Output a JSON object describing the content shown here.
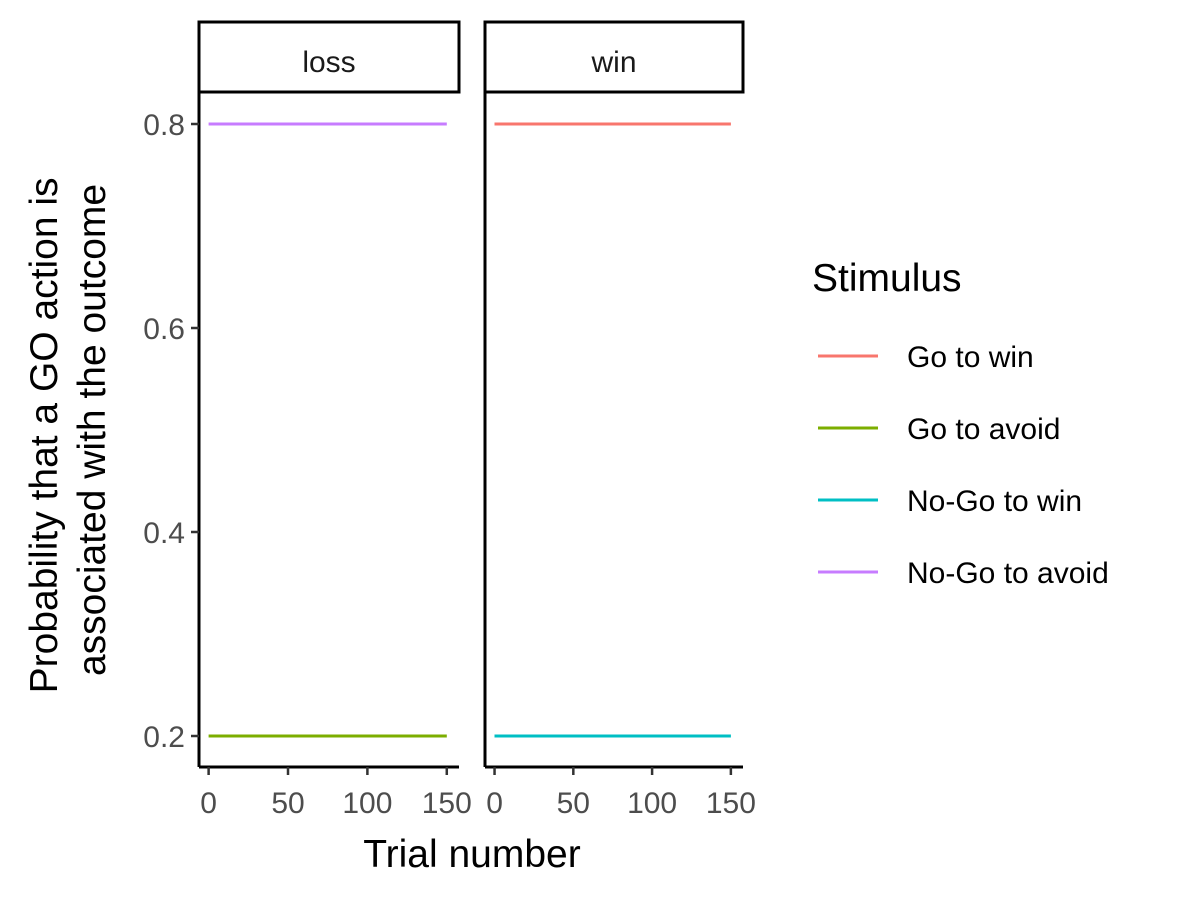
{
  "chart_data": {
    "type": "line",
    "facets": [
      "loss",
      "win"
    ],
    "x_label": "Trial number",
    "y_label_lines": [
      "Probability that a GO action is",
      "associated with the outcome"
    ],
    "x_ticks": [
      0,
      50,
      100,
      150
    ],
    "y_ticks": [
      0.2,
      0.4,
      0.6,
      0.8
    ],
    "x_tick_labels": [
      "0",
      "50",
      "100",
      "150"
    ],
    "y_tick_labels": [
      "0.2",
      "0.4",
      "0.6",
      "0.8"
    ],
    "xlim": [
      0,
      150
    ],
    "ylim": [
      0.2,
      0.8
    ],
    "grid": false,
    "legend": {
      "title": "Stimulus",
      "position": "right",
      "entries": [
        {
          "label": "Go to win",
          "color": "#F8766D"
        },
        {
          "label": "Go to avoid",
          "color": "#7CAE00"
        },
        {
          "label": "No-Go to win",
          "color": "#00BFC4"
        },
        {
          "label": "No-Go to avoid",
          "color": "#C77CFF"
        }
      ]
    },
    "series": [
      {
        "name": "Go to win",
        "facet": "win",
        "color": "#F8766D",
        "x": [
          0,
          150
        ],
        "y": [
          0.8,
          0.8
        ]
      },
      {
        "name": "Go to avoid",
        "facet": "loss",
        "color": "#7CAE00",
        "x": [
          0,
          150
        ],
        "y": [
          0.2,
          0.2
        ]
      },
      {
        "name": "No-Go to win",
        "facet": "win",
        "color": "#00BFC4",
        "x": [
          0,
          150
        ],
        "y": [
          0.2,
          0.2
        ]
      },
      {
        "name": "No-Go to avoid",
        "facet": "loss",
        "color": "#C77CFF",
        "x": [
          0,
          150
        ],
        "y": [
          0.8,
          0.8
        ]
      }
    ]
  }
}
